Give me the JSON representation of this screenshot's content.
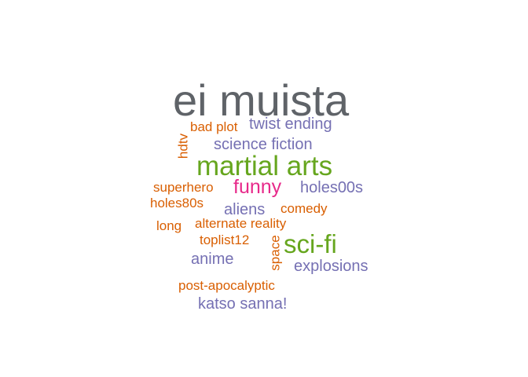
{
  "colors": {
    "gray": "#5f6368",
    "orange": "#d95f02",
    "purple": "#7570b3",
    "green": "#66a61e",
    "pink": "#e7298a",
    "background": "#ffffff"
  },
  "words": [
    {
      "text": "ei muista",
      "color": "gray"
    },
    {
      "text": "bad plot",
      "color": "orange"
    },
    {
      "text": "twist ending",
      "color": "purple"
    },
    {
      "text": "hdtv",
      "color": "orange"
    },
    {
      "text": "science fiction",
      "color": "purple"
    },
    {
      "text": "martial arts",
      "color": "green"
    },
    {
      "text": "superhero",
      "color": "orange"
    },
    {
      "text": "funny",
      "color": "pink"
    },
    {
      "text": "holes00s",
      "color": "purple"
    },
    {
      "text": "holes80s",
      "color": "orange"
    },
    {
      "text": "aliens",
      "color": "purple"
    },
    {
      "text": "comedy",
      "color": "orange"
    },
    {
      "text": "long",
      "color": "orange"
    },
    {
      "text": "alternate reality",
      "color": "orange"
    },
    {
      "text": "toplist12",
      "color": "orange"
    },
    {
      "text": "space",
      "color": "orange"
    },
    {
      "text": "sci-fi",
      "color": "green"
    },
    {
      "text": "anime",
      "color": "purple"
    },
    {
      "text": "explosions",
      "color": "purple"
    },
    {
      "text": "post-apocalyptic",
      "color": "orange"
    },
    {
      "text": "katso sanna!",
      "color": "purple"
    }
  ]
}
